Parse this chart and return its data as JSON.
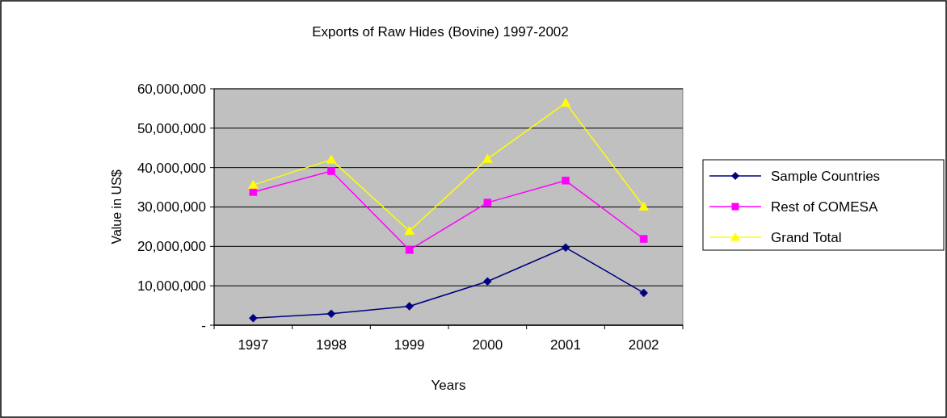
{
  "chart_data": {
    "type": "line",
    "title": "Exports of Raw Hides (Bovine) 1997-2002",
    "xlabel": "Years",
    "ylabel": "Value in US$",
    "categories": [
      "1997",
      "1998",
      "1999",
      "2000",
      "2001",
      "2002"
    ],
    "series": [
      {
        "name": "Sample Countries",
        "color": "#000080",
        "marker": "diamond",
        "values": [
          1800000,
          2900000,
          4800000,
          11100000,
          19700000,
          8200000
        ]
      },
      {
        "name": "Rest of COMESA",
        "color": "#ff00ff",
        "marker": "square",
        "values": [
          33800000,
          39100000,
          19100000,
          31100000,
          36700000,
          21900000
        ]
      },
      {
        "name": "Grand Total",
        "color": "#ffff00",
        "marker": "triangle",
        "values": [
          35600000,
          42000000,
          23900000,
          42200000,
          56400000,
          30100000
        ]
      }
    ],
    "ylim": [
      0,
      60000000
    ],
    "yticks": [
      {
        "value": 0,
        "label": "-"
      },
      {
        "value": 10000000,
        "label": "10,000,000"
      },
      {
        "value": 20000000,
        "label": "20,000,000"
      },
      {
        "value": 30000000,
        "label": "30,000,000"
      },
      {
        "value": 40000000,
        "label": "40,000,000"
      },
      {
        "value": 50000000,
        "label": "50,000,000"
      },
      {
        "value": 60000000,
        "label": "60,000,000"
      }
    ],
    "grid": "y",
    "legend": "right",
    "line_style": "solid"
  }
}
